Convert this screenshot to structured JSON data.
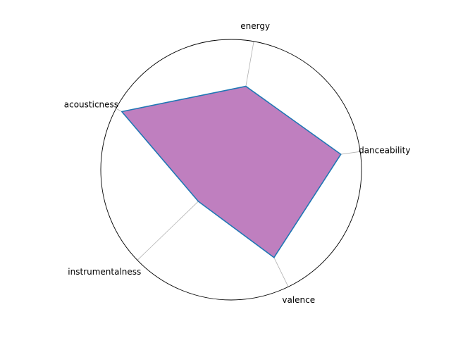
{
  "chart_data": {
    "type": "radar",
    "axes": [
      "danceability",
      "energy",
      "acousticness",
      "instrumentalness",
      "valence"
    ],
    "values": [
      0.85,
      0.65,
      0.95,
      0.35,
      0.75
    ],
    "rlim": [
      0,
      1
    ],
    "grid": true,
    "colors": {
      "fill": "#bf7fbf",
      "line": "#1f77b4",
      "grid": "#b0b0b0",
      "frame": "#000000"
    }
  }
}
